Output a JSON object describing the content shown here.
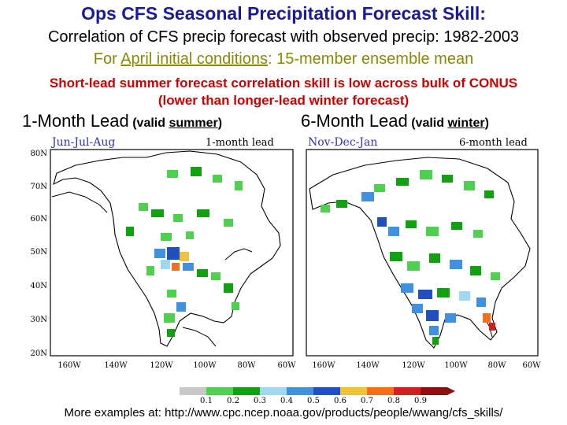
{
  "title": "Ops CFS Seasonal Precipitation Forecast Skill:",
  "subtitle_line1": "Correlation of CFS precip forecast with observed precip: 1982-2003",
  "subtitle_line2": {
    "pre": "For ",
    "underlined": "April initial conditions",
    "post": ": 15-member ensemble mean"
  },
  "note_line1": "Short-lead summer forecast correlation skill is low across bulk of CONUS",
  "note_line2": "(lower than longer-lead winter forecast)",
  "leads": [
    {
      "big": "1-Month Lead",
      "small_pre": "(valid ",
      "small_under": "summer",
      "small_post": ")"
    },
    {
      "big": "6-Month Lead",
      "small_pre": "(valid ",
      "small_under": "winter",
      "small_post": ")"
    }
  ],
  "maps": [
    {
      "season": "Jun-Jul-Aug",
      "lead_label": "1-month lead",
      "lat_labels": [
        "80N",
        "70N",
        "60N",
        "50N",
        "40N",
        "30N",
        "20N"
      ],
      "lon_labels": [
        "160W",
        "140W",
        "120W",
        "100W",
        "80W",
        "60W"
      ]
    },
    {
      "season": "Nov-Dec-Jan",
      "lead_label": "6-month lead",
      "lat_labels": [],
      "lon_labels": [
        "160W",
        "140W",
        "120W",
        "100W",
        "80W",
        "60W"
      ]
    }
  ],
  "colorbar": {
    "ticks": [
      "0.1",
      "0.2",
      "0.3",
      "0.4",
      "0.5",
      "0.6",
      "0.7",
      "0.8",
      "0.9"
    ],
    "colors": [
      "#c8c8c8",
      "#50d050",
      "#10a010",
      "#a0d8f0",
      "#4090e0",
      "#2050c0",
      "#f0c040",
      "#f07020",
      "#d02020",
      "#8a1010"
    ]
  },
  "footer": "More examples at: http://www.cpc.ncep.noaa.gov/products/people/wwang/cfs_skills/"
}
